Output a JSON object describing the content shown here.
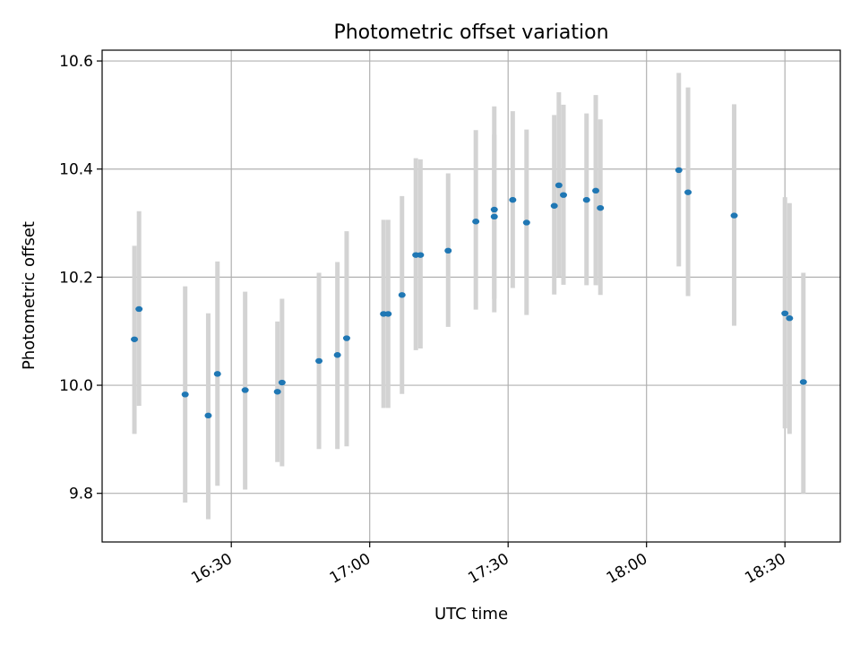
{
  "chart_data": {
    "type": "scatter",
    "title": "Photometric offset variation",
    "xlabel": "UTC time",
    "ylabel": "Photometric offset",
    "x_ticks": [
      "16:30",
      "17:00",
      "17:30",
      "18:00",
      "18:30"
    ],
    "y_ticks": [
      "9.8",
      "10.0",
      "10.2",
      "10.4",
      "10.6"
    ],
    "xlim": [
      "16:02",
      "18:42"
    ],
    "ylim": [
      9.71,
      10.62
    ],
    "grid": true,
    "colors": {
      "points": "#1f77b4",
      "errorbars": "#d3d3d3",
      "grid": "#b0b0b0"
    },
    "series": [
      {
        "x": [
          "16:09",
          "16:10",
          "16:20",
          "16:25",
          "16:27",
          "16:33",
          "16:40",
          "16:41",
          "16:49",
          "16:53",
          "16:55",
          "17:03",
          "17:04",
          "17:07",
          "17:10",
          "17:11",
          "17:17",
          "17:23",
          "17:27",
          "17:27",
          "17:31",
          "17:34",
          "17:40",
          "17:41",
          "17:42",
          "17:47",
          "17:49",
          "17:50",
          "18:07",
          "18:09",
          "18:19",
          "18:30",
          "18:31",
          "18:34"
        ],
        "y": [
          10.085,
          10.141,
          9.983,
          9.944,
          10.021,
          9.991,
          9.988,
          10.005,
          10.045,
          10.056,
          10.087,
          10.132,
          10.132,
          10.167,
          10.241,
          10.241,
          10.249,
          10.303,
          10.325,
          10.312,
          10.343,
          10.301,
          10.332,
          10.37,
          10.352,
          10.343,
          10.36,
          10.328,
          10.398,
          10.357,
          10.314,
          10.133,
          10.124,
          10.006
        ],
        "err_low": [
          9.91,
          9.962,
          9.783,
          9.752,
          9.814,
          9.807,
          9.858,
          9.85,
          9.882,
          9.882,
          9.887,
          9.958,
          9.958,
          9.984,
          10.065,
          10.068,
          10.108,
          10.14,
          10.135,
          10.16,
          10.18,
          10.13,
          10.168,
          10.2,
          10.186,
          10.185,
          10.185,
          10.167,
          10.22,
          10.165,
          10.11,
          9.92,
          9.91,
          9.8
        ],
        "err_high": [
          10.258,
          10.322,
          10.183,
          10.133,
          10.229,
          10.173,
          10.118,
          10.16,
          10.208,
          10.228,
          10.285,
          10.306,
          10.306,
          10.35,
          10.42,
          10.418,
          10.392,
          10.472,
          10.516,
          10.464,
          10.507,
          10.473,
          10.5,
          10.542,
          10.519,
          10.503,
          10.537,
          10.492,
          10.578,
          10.551,
          10.52,
          10.348,
          10.337,
          10.208
        ]
      }
    ]
  }
}
